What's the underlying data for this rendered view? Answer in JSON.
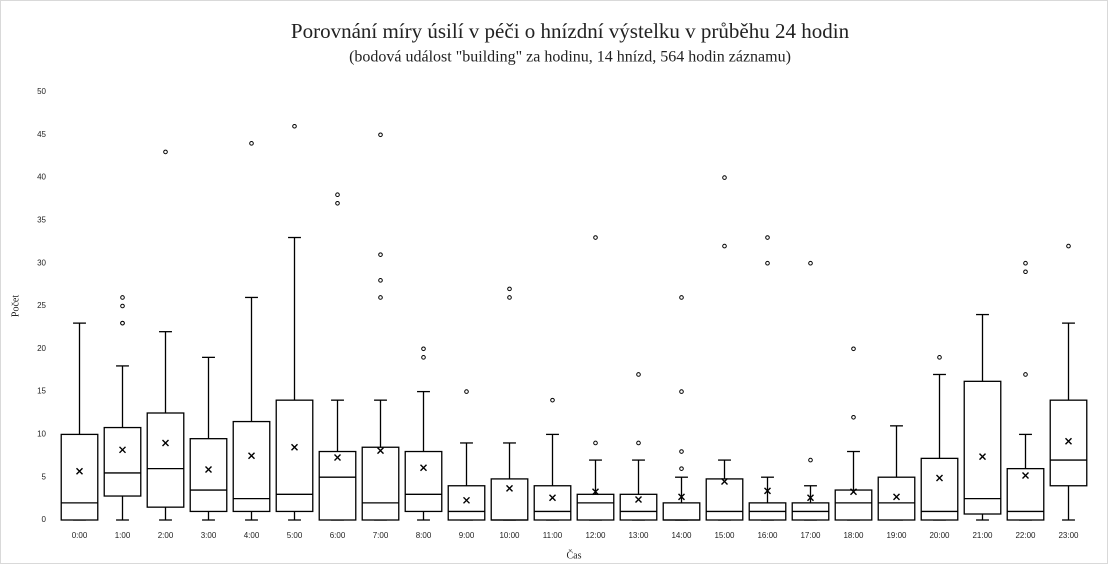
{
  "chart_data": {
    "type": "box",
    "title": "Porovnání míry úsilí v péči o hnízdní výstelku v průběhu 24 hodin",
    "subtitle": "(bodová událost \"building\" za hodinu, 14 hnízd, 564 hodin záznamu)",
    "x_label": "Čas",
    "y_label": "Počet",
    "categories": [
      "0:00",
      "1:00",
      "2:00",
      "3:00",
      "4:00",
      "5:00",
      "6:00",
      "7:00",
      "8:00",
      "9:00",
      "10:00",
      "11:00",
      "12:00",
      "13:00",
      "14:00",
      "15:00",
      "16:00",
      "17:00",
      "18:00",
      "19:00",
      "20:00",
      "21:00",
      "22:00",
      "23:00"
    ],
    "min": [
      0,
      0,
      0,
      0,
      0,
      0,
      0,
      0,
      0,
      0,
      0,
      0,
      0,
      0,
      0,
      0,
      0,
      0,
      0,
      0,
      0,
      0,
      0,
      0
    ],
    "q1": [
      0,
      2.8,
      1.5,
      1,
      1,
      1,
      0,
      0,
      1,
      0,
      0,
      0,
      0,
      0,
      0,
      0,
      0,
      0,
      0,
      0,
      0,
      0.7,
      0,
      4
    ],
    "median": [
      2,
      5.5,
      6,
      3.5,
      2.5,
      3,
      5,
      2,
      3,
      1,
      0,
      1,
      2,
      1,
      0,
      1,
      1,
      1,
      2,
      2,
      1,
      2.5,
      1,
      7
    ],
    "q3": [
      10,
      10.8,
      12.5,
      9.5,
      11.5,
      14,
      8,
      8.5,
      8,
      4,
      4.8,
      4,
      3,
      3,
      2,
      4.8,
      2,
      2,
      3.5,
      5,
      7.2,
      16.2,
      6,
      14
    ],
    "max": [
      23,
      18,
      22,
      19,
      26,
      33,
      14,
      14,
      15,
      9,
      9,
      10,
      7,
      7,
      5,
      7,
      5,
      4,
      8,
      11,
      17,
      24,
      10,
      23
    ],
    "mean": [
      5.7,
      8.2,
      9,
      5.9,
      7.5,
      8.5,
      7.3,
      8.1,
      6.1,
      2.3,
      3.7,
      2.6,
      3.3,
      2.4,
      2.7,
      4.5,
      3.4,
      2.6,
      3.3,
      2.7,
      4.9,
      7.4,
      5.2,
      9.2
    ],
    "outliers": [
      [],
      [
        23,
        23,
        25,
        26
      ],
      [
        43
      ],
      [],
      [
        44
      ],
      [
        46
      ],
      [
        37,
        38
      ],
      [
        26,
        28,
        31,
        45
      ],
      [
        19,
        20
      ],
      [
        15
      ],
      [
        26,
        27
      ],
      [
        14
      ],
      [
        9,
        33
      ],
      [
        9,
        17
      ],
      [
        6,
        8,
        15,
        26
      ],
      [
        32,
        40
      ],
      [
        30,
        33
      ],
      [
        7,
        30
      ],
      [
        12,
        20
      ],
      [],
      [
        19
      ],
      [],
      [
        17,
        29,
        30
      ],
      [
        32
      ]
    ],
    "color": "#000000",
    "ylim": [
      0,
      50
    ],
    "yticks": [
      0,
      5,
      10,
      15,
      20,
      25,
      30,
      35,
      40,
      45,
      50
    ],
    "grid": false
  }
}
